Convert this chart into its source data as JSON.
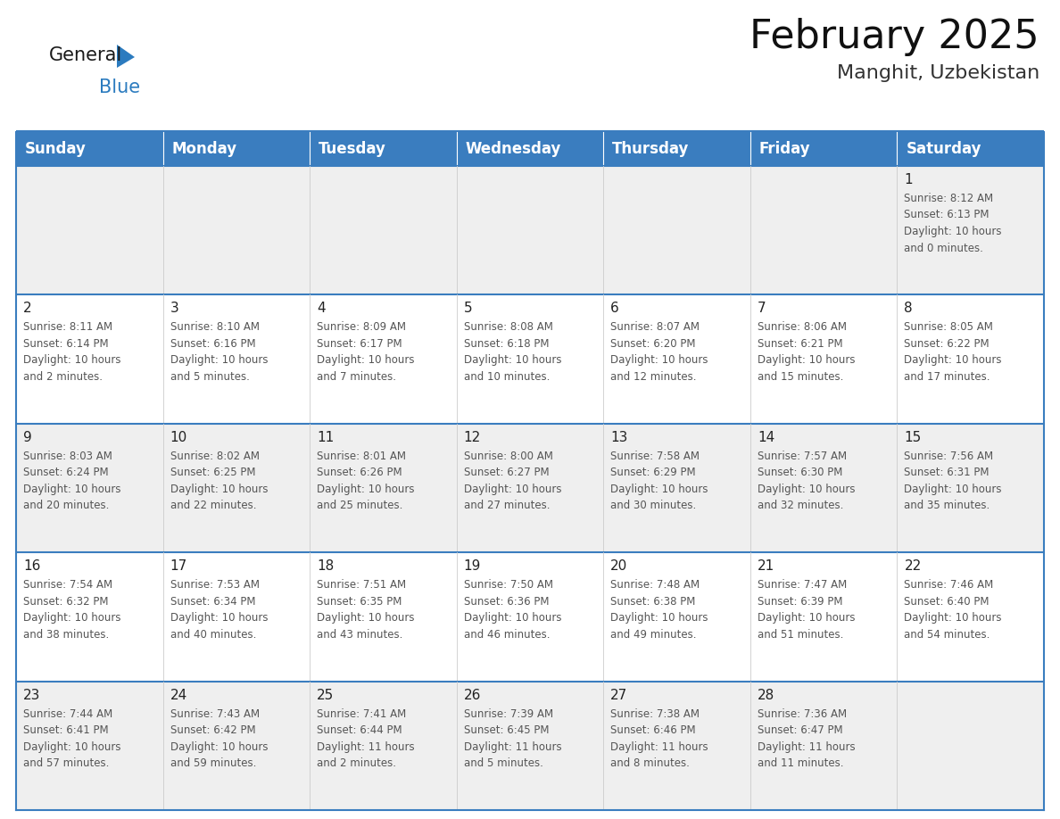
{
  "title": "February 2025",
  "subtitle": "Manghit, Uzbekistan",
  "header_color": "#3a7dbf",
  "header_text_color": "#ffffff",
  "cell_bg_even": "#efefef",
  "cell_bg_odd": "#ffffff",
  "day_names": [
    "Sunday",
    "Monday",
    "Tuesday",
    "Wednesday",
    "Thursday",
    "Friday",
    "Saturday"
  ],
  "title_fontsize": 32,
  "subtitle_fontsize": 16,
  "header_fontsize": 12,
  "day_num_fontsize": 11,
  "info_fontsize": 8.5,
  "logo_general_fontsize": 15,
  "logo_blue_fontsize": 15,
  "calendar": [
    [
      null,
      null,
      null,
      null,
      null,
      null,
      {
        "day": 1,
        "sunrise": "8:12 AM",
        "sunset": "6:13 PM",
        "daylight": "10 hours\nand 0 minutes."
      }
    ],
    [
      {
        "day": 2,
        "sunrise": "8:11 AM",
        "sunset": "6:14 PM",
        "daylight": "10 hours\nand 2 minutes."
      },
      {
        "day": 3,
        "sunrise": "8:10 AM",
        "sunset": "6:16 PM",
        "daylight": "10 hours\nand 5 minutes."
      },
      {
        "day": 4,
        "sunrise": "8:09 AM",
        "sunset": "6:17 PM",
        "daylight": "10 hours\nand 7 minutes."
      },
      {
        "day": 5,
        "sunrise": "8:08 AM",
        "sunset": "6:18 PM",
        "daylight": "10 hours\nand 10 minutes."
      },
      {
        "day": 6,
        "sunrise": "8:07 AM",
        "sunset": "6:20 PM",
        "daylight": "10 hours\nand 12 minutes."
      },
      {
        "day": 7,
        "sunrise": "8:06 AM",
        "sunset": "6:21 PM",
        "daylight": "10 hours\nand 15 minutes."
      },
      {
        "day": 8,
        "sunrise": "8:05 AM",
        "sunset": "6:22 PM",
        "daylight": "10 hours\nand 17 minutes."
      }
    ],
    [
      {
        "day": 9,
        "sunrise": "8:03 AM",
        "sunset": "6:24 PM",
        "daylight": "10 hours\nand 20 minutes."
      },
      {
        "day": 10,
        "sunrise": "8:02 AM",
        "sunset": "6:25 PM",
        "daylight": "10 hours\nand 22 minutes."
      },
      {
        "day": 11,
        "sunrise": "8:01 AM",
        "sunset": "6:26 PM",
        "daylight": "10 hours\nand 25 minutes."
      },
      {
        "day": 12,
        "sunrise": "8:00 AM",
        "sunset": "6:27 PM",
        "daylight": "10 hours\nand 27 minutes."
      },
      {
        "day": 13,
        "sunrise": "7:58 AM",
        "sunset": "6:29 PM",
        "daylight": "10 hours\nand 30 minutes."
      },
      {
        "day": 14,
        "sunrise": "7:57 AM",
        "sunset": "6:30 PM",
        "daylight": "10 hours\nand 32 minutes."
      },
      {
        "day": 15,
        "sunrise": "7:56 AM",
        "sunset": "6:31 PM",
        "daylight": "10 hours\nand 35 minutes."
      }
    ],
    [
      {
        "day": 16,
        "sunrise": "7:54 AM",
        "sunset": "6:32 PM",
        "daylight": "10 hours\nand 38 minutes."
      },
      {
        "day": 17,
        "sunrise": "7:53 AM",
        "sunset": "6:34 PM",
        "daylight": "10 hours\nand 40 minutes."
      },
      {
        "day": 18,
        "sunrise": "7:51 AM",
        "sunset": "6:35 PM",
        "daylight": "10 hours\nand 43 minutes."
      },
      {
        "day": 19,
        "sunrise": "7:50 AM",
        "sunset": "6:36 PM",
        "daylight": "10 hours\nand 46 minutes."
      },
      {
        "day": 20,
        "sunrise": "7:48 AM",
        "sunset": "6:38 PM",
        "daylight": "10 hours\nand 49 minutes."
      },
      {
        "day": 21,
        "sunrise": "7:47 AM",
        "sunset": "6:39 PM",
        "daylight": "10 hours\nand 51 minutes."
      },
      {
        "day": 22,
        "sunrise": "7:46 AM",
        "sunset": "6:40 PM",
        "daylight": "10 hours\nand 54 minutes."
      }
    ],
    [
      {
        "day": 23,
        "sunrise": "7:44 AM",
        "sunset": "6:41 PM",
        "daylight": "10 hours\nand 57 minutes."
      },
      {
        "day": 24,
        "sunrise": "7:43 AM",
        "sunset": "6:42 PM",
        "daylight": "10 hours\nand 59 minutes."
      },
      {
        "day": 25,
        "sunrise": "7:41 AM",
        "sunset": "6:44 PM",
        "daylight": "11 hours\nand 2 minutes."
      },
      {
        "day": 26,
        "sunrise": "7:39 AM",
        "sunset": "6:45 PM",
        "daylight": "11 hours\nand 5 minutes."
      },
      {
        "day": 27,
        "sunrise": "7:38 AM",
        "sunset": "6:46 PM",
        "daylight": "11 hours\nand 8 minutes."
      },
      {
        "day": 28,
        "sunrise": "7:36 AM",
        "sunset": "6:47 PM",
        "daylight": "11 hours\nand 11 minutes."
      },
      null
    ]
  ]
}
